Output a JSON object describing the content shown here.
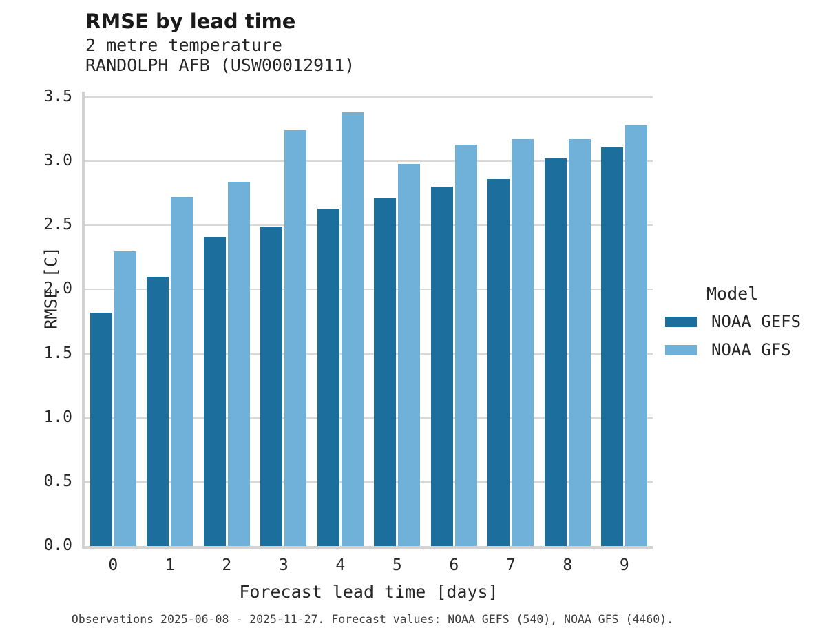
{
  "header": {
    "title": "RMSE by lead time",
    "subtitle_variable": "2 metre temperature",
    "subtitle_station": "RANDOLPH AFB (USW00012911)"
  },
  "y_axis": {
    "label": "RMSE [C]",
    "tick_labels": [
      "0.0",
      "0.5",
      "1.0",
      "1.5",
      "2.0",
      "2.5",
      "3.0",
      "3.5"
    ]
  },
  "x_axis": {
    "label": "Forecast lead time [days]",
    "tick_labels": [
      "0",
      "1",
      "2",
      "3",
      "4",
      "5",
      "6",
      "7",
      "8",
      "9"
    ]
  },
  "legend": {
    "title": "Model",
    "entries": [
      {
        "label": "NOAA GEFS",
        "color": "#1c6e9d"
      },
      {
        "label": "NOAA GFS",
        "color": "#6fb1d9"
      }
    ]
  },
  "footer": {
    "caption": "Observations 2025-06-08 - 2025-11-27. Forecast values: NOAA GEFS (540), NOAA GFS (4460)."
  },
  "colors": {
    "gefs_bar": "#1c6e9d",
    "gfs_bar": "#6fb1d9",
    "gridline": "#d8d8d8",
    "spine": "#d2d2d2"
  },
  "chart_data": {
    "type": "bar",
    "title": "RMSE by lead time",
    "subtitle": "2 metre temperature — RANDOLPH AFB (USW00012911)",
    "categories": [
      0,
      1,
      2,
      3,
      4,
      5,
      6,
      7,
      8,
      9
    ],
    "series": [
      {
        "name": "NOAA GEFS",
        "color": "#1c6e9d",
        "values": [
          1.82,
          2.1,
          2.41,
          2.49,
          2.63,
          2.71,
          2.8,
          2.86,
          3.02,
          3.11
        ]
      },
      {
        "name": "NOAA GFS",
        "color": "#6fb1d9",
        "values": [
          2.3,
          2.72,
          2.84,
          3.24,
          3.38,
          2.98,
          3.13,
          3.17,
          3.17,
          3.28
        ]
      }
    ],
    "xlabel": "Forecast lead time [days]",
    "ylabel": "RMSE [C]",
    "ylim": [
      0,
      3.5
    ],
    "ytick_step": 0.5,
    "grid": true,
    "legend_title": "Model",
    "legend_position": "right"
  }
}
